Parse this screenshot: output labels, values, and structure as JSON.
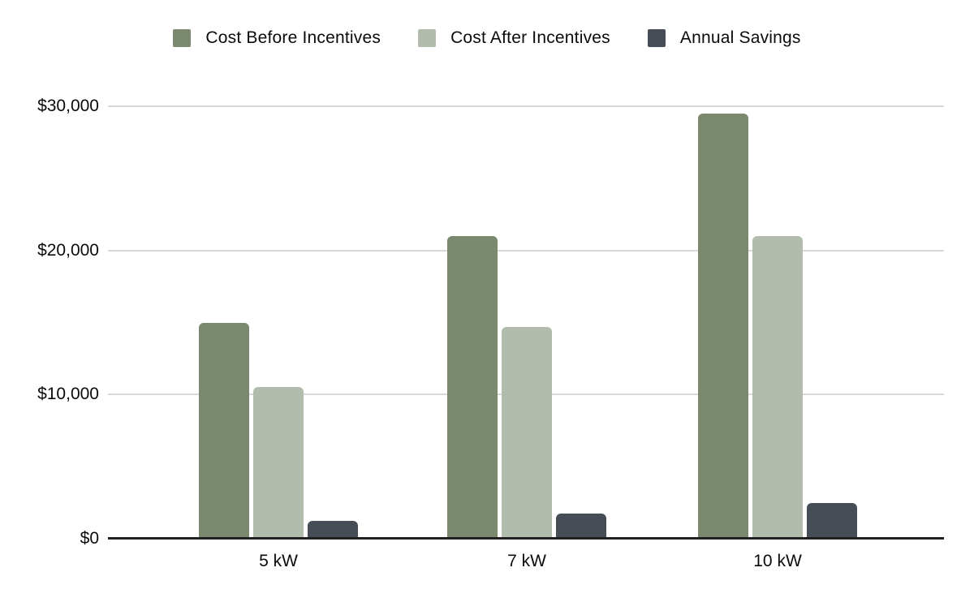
{
  "chart_data": {
    "type": "bar",
    "title": "",
    "categories": [
      "5 kW",
      "7 kW",
      "10 kW"
    ],
    "series": [
      {
        "name": "Cost Before Incentives",
        "color": "#7a886d",
        "values": [
          15000,
          21000,
          29500
        ]
      },
      {
        "name": "Cost After Incentives",
        "color": "#b2bcad",
        "values": [
          10500,
          14700,
          21000
        ]
      },
      {
        "name": "Annual Savings",
        "color": "#474d57",
        "values": [
          1250,
          1750,
          2500
        ]
      }
    ],
    "ylim": [
      0,
      30000
    ],
    "yticks": [
      {
        "value": 0,
        "label": "$0"
      },
      {
        "value": 10000,
        "label": "$10,000"
      },
      {
        "value": 20000,
        "label": "$20,000"
      },
      {
        "value": 30000,
        "label": "$30,000"
      }
    ],
    "legend_position": "top",
    "grid": "horizontal",
    "colors": {
      "gridline": "#d9d9d9",
      "axis_line": "#212121",
      "text": "#0b0b0b",
      "background": "#ffffff"
    }
  }
}
